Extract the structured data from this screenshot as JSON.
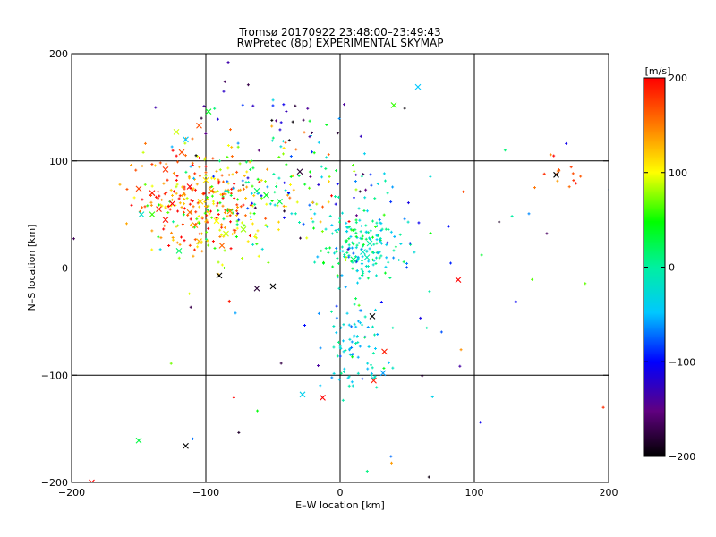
{
  "title": "Tromsø 20170922 23:48:00–23:49:43",
  "subtitle": "RwPretec (8p) EXPERIMENTAL SKYMAP",
  "chart_data": {
    "type": "scatter",
    "title": "Tromsø 20170922 23:48:00–23:49:43",
    "subtitle": "RwPretec (8p) EXPERIMENTAL SKYMAP",
    "xlabel": "E–W location [km]",
    "ylabel": "N–S location [km]",
    "xlim": [
      -200,
      200
    ],
    "ylim": [
      -200,
      200
    ],
    "xticks": [
      -200,
      -100,
      0,
      100,
      200
    ],
    "yticks": [
      -200,
      -100,
      0,
      100,
      200
    ],
    "xticklabels": [
      "−200",
      "−100",
      "0",
      "100",
      "200"
    ],
    "yticklabels": [
      "−200",
      "−100",
      "0",
      "100",
      "200"
    ],
    "grid": true,
    "colorbar": {
      "label": "[m/s]",
      "range": [
        -200,
        200
      ],
      "ticks": [
        200,
        100,
        0,
        -100,
        -200
      ],
      "ticklabels": [
        "200",
        "100",
        "0",
        "−100",
        "−200"
      ],
      "colormap": "rainbow (black–purple–blue–cyan–green–yellow–red)"
    },
    "clusters": [
      {
        "cx": -115,
        "cy": 65,
        "sx": 20,
        "sy": 22,
        "n": 170,
        "vmean": 150,
        "vsd": 45
      },
      {
        "cx": -85,
        "cy": 50,
        "sx": 22,
        "sy": 25,
        "n": 120,
        "vmean": 110,
        "vsd": 60
      },
      {
        "cx": -50,
        "cy": 80,
        "sx": 30,
        "sy": 30,
        "n": 140,
        "vmean": 30,
        "vsd": 80
      },
      {
        "cx": 15,
        "cy": 20,
        "sx": 14,
        "sy": 14,
        "n": 150,
        "vmean": -10,
        "vsd": 35
      },
      {
        "cx": 10,
        "cy": -70,
        "sx": 12,
        "sy": 25,
        "n": 90,
        "vmean": -30,
        "vsd": 30
      },
      {
        "cx": 30,
        "cy": 50,
        "sx": 18,
        "sy": 25,
        "n": 50,
        "vmean": -60,
        "vsd": 60
      },
      {
        "cx": -50,
        "cy": 140,
        "sx": 40,
        "sy": 30,
        "n": 40,
        "vmean": -120,
        "vsd": 60
      },
      {
        "cx": 165,
        "cy": 90,
        "sx": 10,
        "sy": 10,
        "n": 15,
        "vmean": 180,
        "vsd": 20
      },
      {
        "cx": 0,
        "cy": 0,
        "sx": 110,
        "sy": 110,
        "n": 60,
        "vmean": 0,
        "vsd": 120
      }
    ],
    "crosses": [
      {
        "x": -118,
        "y": 108,
        "v": 170
      },
      {
        "x": -130,
        "y": 92,
        "v": 180
      },
      {
        "x": -140,
        "y": 70,
        "v": 190
      },
      {
        "x": -112,
        "y": 52,
        "v": 160
      },
      {
        "x": -125,
        "y": 60,
        "v": 200
      },
      {
        "x": -104,
        "y": 62,
        "v": 120
      },
      {
        "x": -96,
        "y": 72,
        "v": 140
      },
      {
        "x": -135,
        "y": 55,
        "v": 185
      },
      {
        "x": -150,
        "y": 74,
        "v": 175
      },
      {
        "x": -92,
        "y": 44,
        "v": 100
      },
      {
        "x": -85,
        "y": 32,
        "v": 90
      },
      {
        "x": -72,
        "y": 36,
        "v": 80
      },
      {
        "x": -45,
        "y": 62,
        "v": 30
      },
      {
        "x": -55,
        "y": 68,
        "v": 40
      },
      {
        "x": -62,
        "y": 72,
        "v": 20
      },
      {
        "x": -30,
        "y": 90,
        "v": -180
      },
      {
        "x": -98,
        "y": 146,
        "v": 40
      },
      {
        "x": -115,
        "y": 120,
        "v": -50
      },
      {
        "x": -105,
        "y": 133,
        "v": 170
      },
      {
        "x": -122,
        "y": 127,
        "v": 90
      },
      {
        "x": 40,
        "y": 152,
        "v": 60
      },
      {
        "x": 58,
        "y": 169,
        "v": -50
      },
      {
        "x": 22,
        "y": 23,
        "v": 0
      },
      {
        "x": 17,
        "y": 15,
        "v": -20
      },
      {
        "x": 10,
        "y": 8,
        "v": 20
      },
      {
        "x": 20,
        "y": 10,
        "v": -10
      },
      {
        "x": 88,
        "y": -11,
        "v": 200
      },
      {
        "x": 24,
        "y": -45,
        "v": -200
      },
      {
        "x": 33,
        "y": -78,
        "v": 190
      },
      {
        "x": 32,
        "y": -98,
        "v": -60
      },
      {
        "x": -50,
        "y": -17,
        "v": -200
      },
      {
        "x": -62,
        "y": -19,
        "v": -180
      },
      {
        "x": -90,
        "y": -7,
        "v": -200
      },
      {
        "x": -28,
        "y": -118,
        "v": -40
      },
      {
        "x": -13,
        "y": -121,
        "v": 200
      },
      {
        "x": -150,
        "y": -161,
        "v": 30
      },
      {
        "x": -115,
        "y": -166,
        "v": -200
      },
      {
        "x": 25,
        "y": -105,
        "v": 190
      },
      {
        "x": 161,
        "y": 87,
        "v": -200
      },
      {
        "x": -185,
        "y": -200,
        "v": 200
      },
      {
        "x": -130,
        "y": 45,
        "v": 195
      },
      {
        "x": -140,
        "y": 50,
        "v": 60
      },
      {
        "x": -105,
        "y": 25,
        "v": 130
      },
      {
        "x": -120,
        "y": 16,
        "v": 20
      },
      {
        "x": -88,
        "y": 21,
        "v": 160
      },
      {
        "x": -108,
        "y": 40,
        "v": 150
      },
      {
        "x": -148,
        "y": 50,
        "v": -20
      },
      {
        "x": -100,
        "y": 82,
        "v": 110
      },
      {
        "x": -82,
        "y": 53,
        "v": 150
      },
      {
        "x": -112,
        "y": 76,
        "v": 200
      }
    ]
  }
}
